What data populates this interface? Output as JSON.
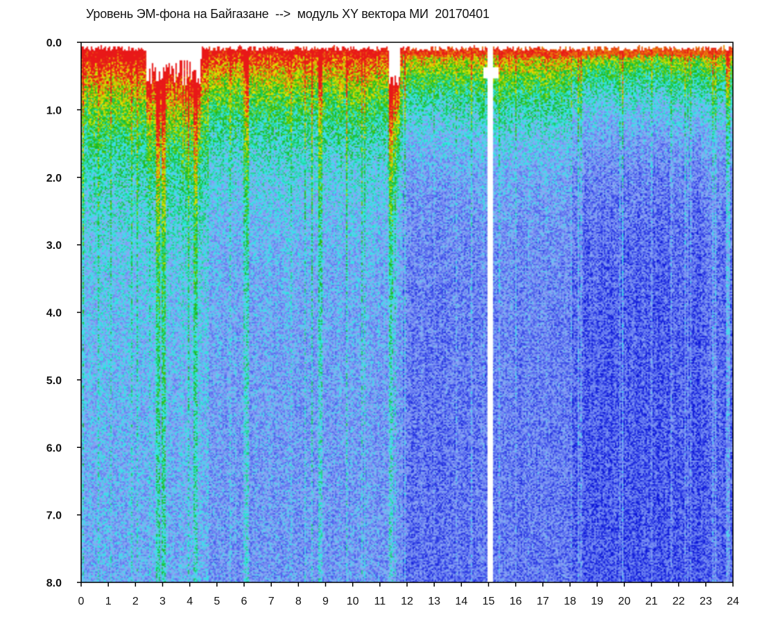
{
  "title": "Уровень ЭМ-фона на Байгазане  -->  модуль XY вектора МИ  20170401",
  "chart_data": {
    "type": "heatmap",
    "title": "Уровень ЭМ-фона на Байгазане  -->  модуль XY вектора МИ  20170401",
    "xlabel": "",
    "ylabel": "",
    "xlim": [
      0,
      24
    ],
    "ylim": [
      0,
      8
    ],
    "y_inverted": true,
    "x_ticks": [
      "0",
      "1",
      "2",
      "3",
      "4",
      "5",
      "6",
      "7",
      "8",
      "9",
      "10",
      "11",
      "12",
      "13",
      "14",
      "15",
      "16",
      "17",
      "18",
      "19",
      "20",
      "21",
      "22",
      "23",
      "24"
    ],
    "y_ticks": [
      "0.0",
      "1.0",
      "2.0",
      "3.0",
      "4.0",
      "5.0",
      "6.0",
      "7.0",
      "8.0"
    ],
    "colorscale": [
      "#0a14d8",
      "#5a6ef0",
      "#8ea8f4",
      "#2ee8e8",
      "#18b818",
      "#e8e800",
      "#e81818"
    ],
    "grid": false,
    "legend": "none"
  }
}
